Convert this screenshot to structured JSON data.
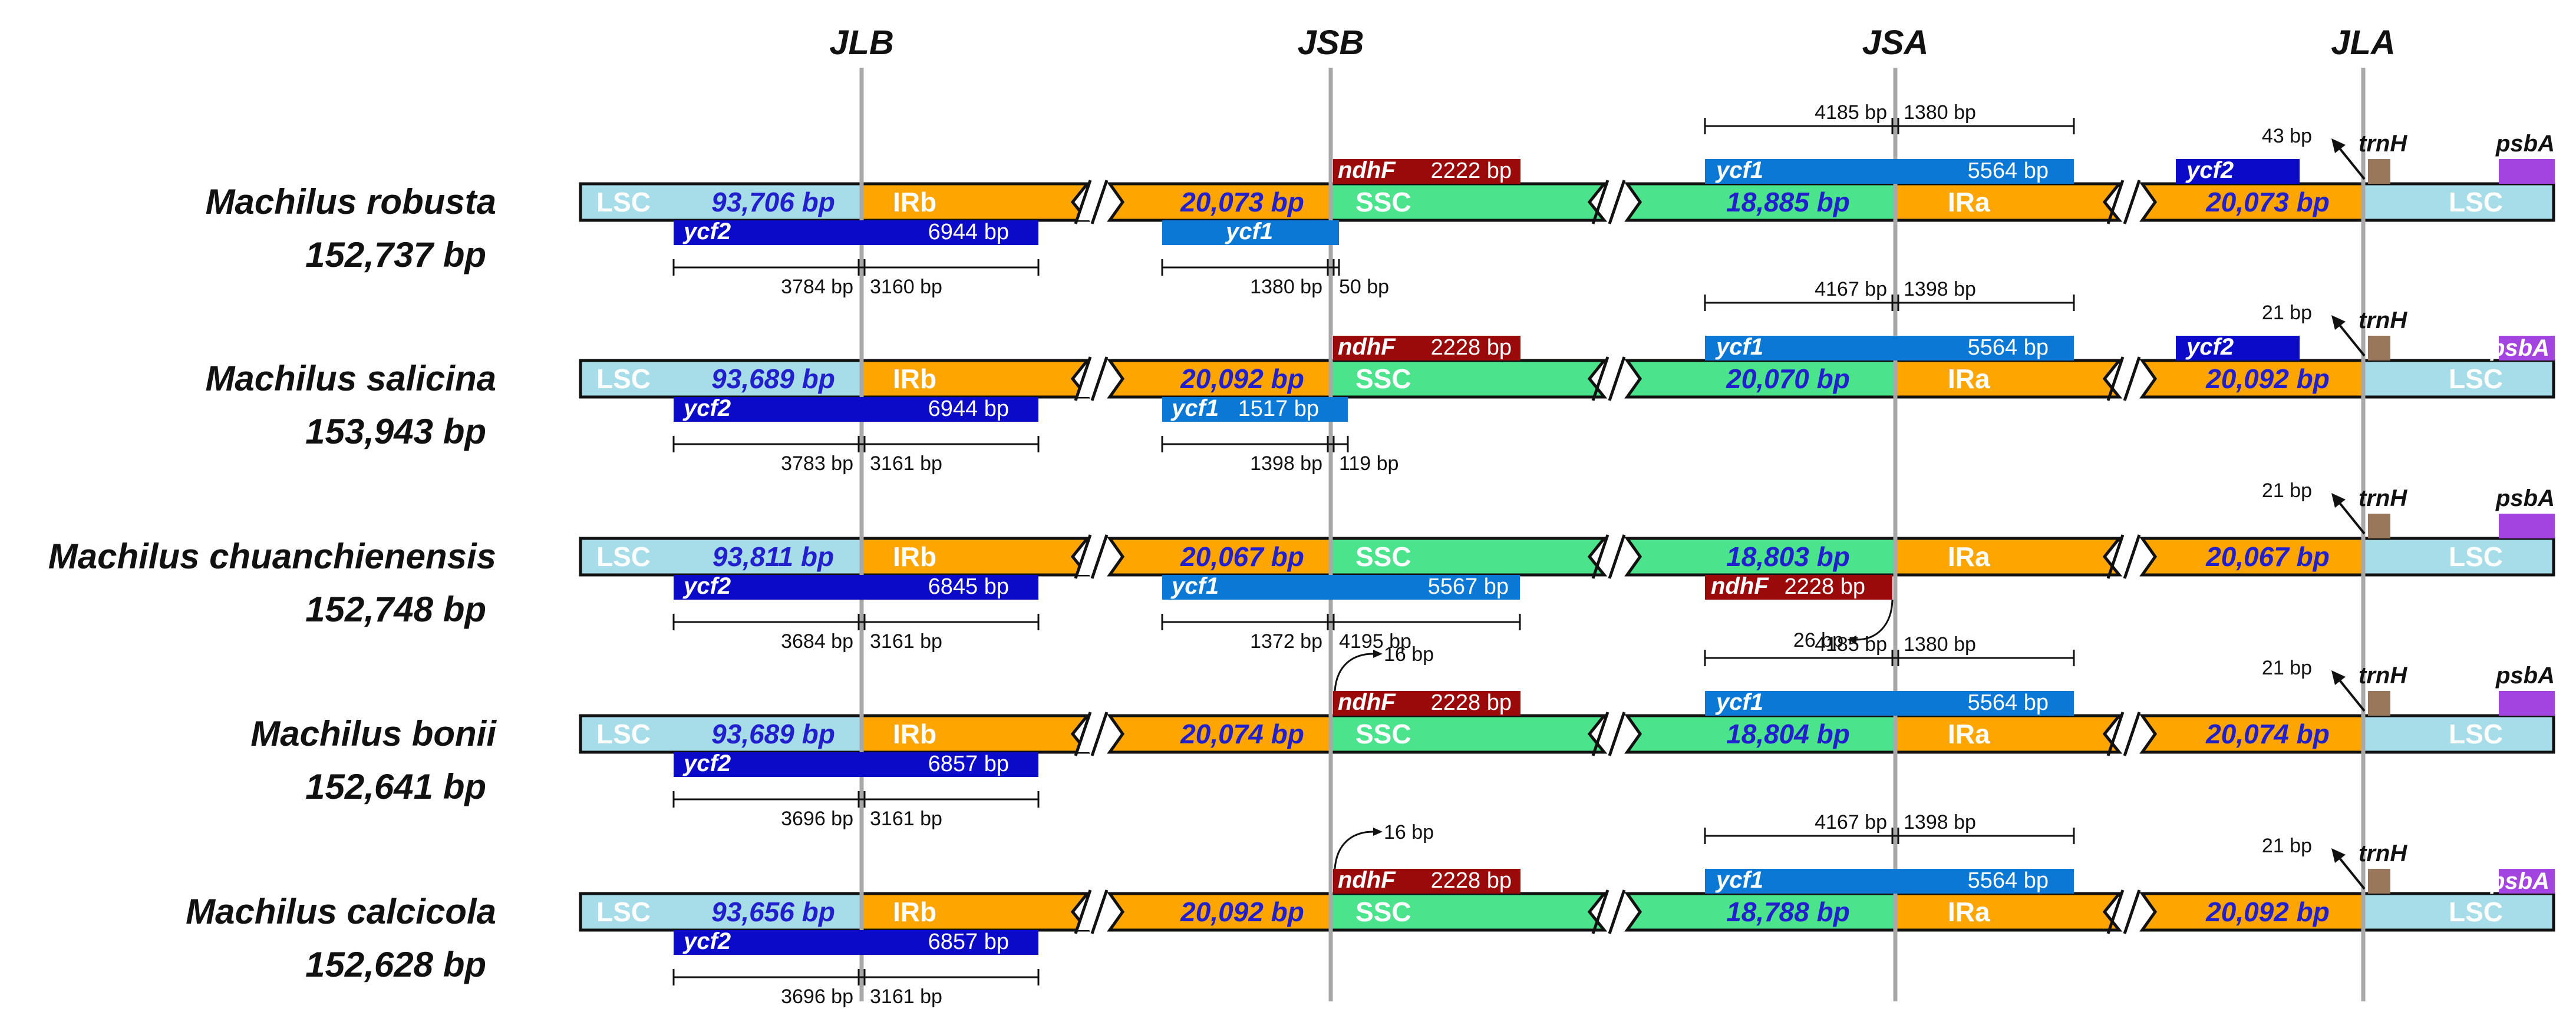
{
  "junctions": [
    "JLB",
    "JSB",
    "JSA",
    "JLA"
  ],
  "region_labels": {
    "lsc": "LSC",
    "irb": "IRb",
    "ssc": "SSC",
    "ira": "IRa"
  },
  "colors": {
    "lsc": "#a6dde8",
    "ir": "#ffa500",
    "ssc": "#4be38c",
    "ycf2": "#0a0ac8",
    "ycf1": "#0b78d6",
    "ndhF": "#9b0a0a",
    "trnH": "#98775a",
    "psbA": "#a444e0",
    "bp_text": "#2220cc"
  },
  "samples": [
    {
      "name": "Machilus robusta",
      "length": "152,737 bp",
      "lsc_bp": "93,706 bp",
      "irb_bp": "20,073 bp",
      "ssc_bp": "18,885 bp",
      "ira_bp": "20,073 bp",
      "ycf2_left": {
        "name": "ycf2",
        "size": "6944 bp",
        "left": "3784 bp",
        "right": "3160 bp"
      },
      "ycf1_jsb": {
        "name": "ycf1",
        "size": "",
        "left": "1380 bp",
        "right": "50 bp",
        "full": false
      },
      "ndhF": {
        "name": "ndhF",
        "size": "2222 bp",
        "pos": "top",
        "offset": ""
      },
      "ycf1_jsa": {
        "name": "ycf1",
        "size": "5564 bp",
        "left": "4185 bp",
        "right": "1380 bp"
      },
      "ycf2_right": {
        "name": "ycf2"
      },
      "trnH": {
        "name": "trnH",
        "dist": "43 bp"
      },
      "psbA": {
        "name": "psbA",
        "inside": false
      }
    },
    {
      "name": "Machilus salicina",
      "length": "153,943 bp",
      "lsc_bp": "93,689 bp",
      "irb_bp": "20,092 bp",
      "ssc_bp": "20,070 bp",
      "ira_bp": "20,092 bp",
      "ycf2_left": {
        "name": "ycf2",
        "size": "6944 bp",
        "left": "3783 bp",
        "right": "3161 bp"
      },
      "ycf1_jsb": {
        "name": "ycf1",
        "size": "1517 bp",
        "left": "1398 bp",
        "right": "119 bp",
        "full": false
      },
      "ndhF": {
        "name": "ndhF",
        "size": "2228 bp",
        "pos": "top",
        "offset": ""
      },
      "ycf1_jsa": {
        "name": "ycf1",
        "size": "5564 bp",
        "left": "4167 bp",
        "right": "1398 bp"
      },
      "ycf2_right": {
        "name": "ycf2"
      },
      "trnH": {
        "name": "trnH",
        "dist": "21 bp"
      },
      "psbA": {
        "name": "psbA",
        "inside": true
      }
    },
    {
      "name": "Machilus chuanchienensis",
      "length": "152,748 bp",
      "lsc_bp": "93,811 bp",
      "irb_bp": "20,067 bp",
      "ssc_bp": "18,803 bp",
      "ira_bp": "20,067 bp",
      "ycf2_left": {
        "name": "ycf2",
        "size": "6845 bp",
        "left": "3684 bp",
        "right": "3161 bp"
      },
      "ycf1_jsb": {
        "name": "ycf1",
        "size": "5567 bp",
        "left": "1372 bp",
        "right": "4195 bp",
        "full": true
      },
      "ndhF": {
        "name": "ndhF",
        "size": "2228 bp",
        "pos": "bottom-jsa",
        "offset": "26 bp"
      },
      "trnH": {
        "name": "trnH",
        "dist": "21 bp"
      },
      "psbA": {
        "name": "psbA",
        "inside": false
      }
    },
    {
      "name": "Machilus bonii",
      "length": "152,641 bp",
      "lsc_bp": "93,689 bp",
      "irb_bp": "20,074 bp",
      "ssc_bp": "18,804 bp",
      "ira_bp": "20,074 bp",
      "ycf2_left": {
        "name": "ycf2",
        "size": "6857 bp",
        "left": "3696 bp",
        "right": "3161 bp"
      },
      "ndhF": {
        "name": "ndhF",
        "size": "2228 bp",
        "pos": "top-offset",
        "offset": "16 bp"
      },
      "ycf1_jsa": {
        "name": "ycf1",
        "size": "5564 bp",
        "left": "4185 bp",
        "right": "1380 bp"
      },
      "trnH": {
        "name": "trnH",
        "dist": "21 bp"
      },
      "psbA": {
        "name": "psbA",
        "inside": false
      }
    },
    {
      "name": "Machilus calcicola",
      "length": "152,628 bp",
      "lsc_bp": "93,656 bp",
      "irb_bp": "20,092 bp",
      "ssc_bp": "18,788 bp",
      "ira_bp": "20,092 bp",
      "ycf2_left": {
        "name": "ycf2",
        "size": "6857 bp",
        "left": "3696 bp",
        "right": "3161 bp"
      },
      "ndhF": {
        "name": "ndhF",
        "size": "2228 bp",
        "pos": "top-offset",
        "offset": "16 bp"
      },
      "ycf1_jsa": {
        "name": "ycf1",
        "size": "5564 bp",
        "left": "4167 bp",
        "right": "1398 bp"
      },
      "trnH": {
        "name": "trnH",
        "dist": "21 bp"
      },
      "psbA": {
        "name": "psbA",
        "inside": true
      }
    }
  ]
}
